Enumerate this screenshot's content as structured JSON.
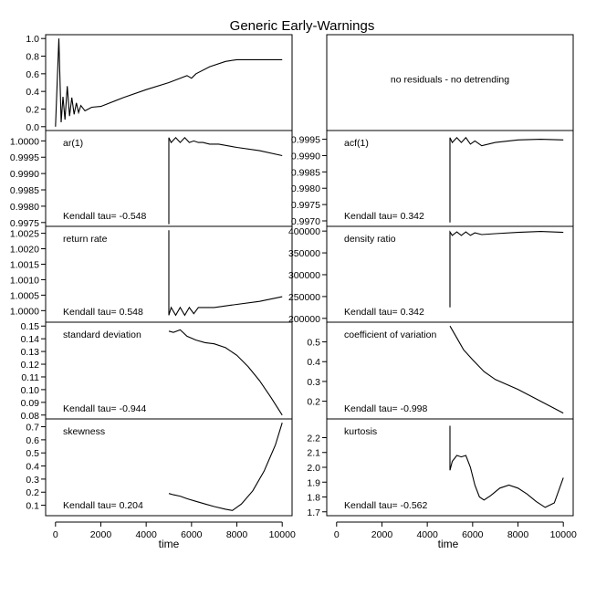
{
  "title": "Generic Early-Warnings",
  "x_title": "time",
  "x_ticks": [
    "0",
    "2000",
    "4000",
    "6000",
    "8000",
    "10000"
  ],
  "chart_data": [
    {
      "type": "line",
      "panel": "left-1",
      "label": "",
      "note": "",
      "xlim": [
        0,
        10000
      ],
      "ylim": [
        0,
        1.0
      ],
      "y_ticks": [
        "1.0",
        "0.8",
        "0.6",
        "0.4",
        "0.2",
        "0.0"
      ],
      "series": [
        {
          "x": [
            0,
            150,
            250,
            330,
            420,
            520,
            620,
            720,
            820,
            920,
            1020,
            1120,
            1300,
            1600,
            2000,
            3000,
            4000,
            5000,
            5800,
            6000,
            6200,
            6800,
            7500,
            8000,
            10000
          ],
          "y": [
            0.0,
            1.0,
            0.05,
            0.34,
            0.08,
            0.46,
            0.12,
            0.33,
            0.14,
            0.27,
            0.16,
            0.24,
            0.18,
            0.22,
            0.23,
            0.33,
            0.42,
            0.5,
            0.58,
            0.55,
            0.6,
            0.68,
            0.74,
            0.76,
            0.76
          ]
        }
      ]
    },
    {
      "type": "text",
      "panel": "right-1",
      "label": "",
      "note": "no residuals - no detrending"
    },
    {
      "type": "line",
      "panel": "left-2",
      "label": "ar(1)",
      "note": "Kendall tau= -0.548",
      "xlim": [
        0,
        10000
      ],
      "ylim": [
        0.9975,
        1.0002
      ],
      "y_ticks": [
        "1.0000",
        "0.9995",
        "0.9990",
        "0.9985",
        "0.9980",
        "0.9975"
      ],
      "series": [
        {
          "x": [
            5000,
            5000,
            5100,
            5300,
            5500,
            5700,
            5900,
            6100,
            6300,
            6500,
            6800,
            7200,
            8000,
            9000,
            10000
          ],
          "y": [
            0.99745,
            1.0001,
            0.99995,
            1.0001,
            0.99995,
            1.0001,
            0.99995,
            1.0,
            0.99995,
            0.99995,
            0.9999,
            0.9999,
            0.9998,
            0.9997,
            0.99955
          ]
        }
      ]
    },
    {
      "type": "line",
      "panel": "right-2",
      "label": "acf(1)",
      "note": "Kendall tau= 0.342",
      "xlim": [
        0,
        10000
      ],
      "ylim": [
        0.99695,
        0.99965
      ],
      "y_ticks": [
        "0.9995",
        "0.9990",
        "0.9985",
        "0.9980",
        "0.9975",
        "0.9970"
      ],
      "series": [
        {
          "x": [
            5000,
            5000,
            5100,
            5300,
            5500,
            5700,
            5900,
            6100,
            6400,
            7000,
            8000,
            9000,
            10000
          ],
          "y": [
            0.99695,
            0.99955,
            0.9994,
            0.99955,
            0.9994,
            0.99955,
            0.99935,
            0.99945,
            0.9993,
            0.9994,
            0.99948,
            0.9995,
            0.99948
          ]
        }
      ]
    },
    {
      "type": "line",
      "panel": "left-3",
      "label": "return rate",
      "note": "Kendall tau= 0.548",
      "xlim": [
        0,
        10000
      ],
      "ylim": [
        0.99975,
        1.0026
      ],
      "y_ticks": [
        "1.0025",
        "1.0020",
        "1.0015",
        "1.0010",
        "1.0005",
        "1.0000"
      ],
      "series": [
        {
          "x": [
            5000,
            5000,
            5100,
            5300,
            5500,
            5700,
            5900,
            6100,
            6300,
            6600,
            7000,
            8000,
            9000,
            10000
          ],
          "y": [
            1.0026,
            0.99985,
            1.0001,
            0.99985,
            1.0001,
            0.99985,
            1.0001,
            0.9999,
            1.0001,
            1.0001,
            1.0001,
            1.0002,
            1.0003,
            1.00045
          ]
        }
      ]
    },
    {
      "type": "line",
      "panel": "right-3",
      "label": "density ratio",
      "note": "Kendall tau= 0.342",
      "xlim": [
        0,
        10000
      ],
      "ylim": [
        200000,
        402000
      ],
      "y_ticks": [
        "400000",
        "350000",
        "300000",
        "250000",
        "200000"
      ],
      "series": [
        {
          "x": [
            5000,
            5000,
            5100,
            5300,
            5500,
            5700,
            5900,
            6100,
            6400,
            7000,
            8000,
            9000,
            10000
          ],
          "y": [
            225000,
            398000,
            390000,
            398000,
            390000,
            398000,
            390000,
            396000,
            392000,
            394000,
            397000,
            399000,
            397000
          ]
        }
      ]
    },
    {
      "type": "line",
      "panel": "left-4",
      "label": "standard deviation",
      "note": "Kendall tau= -0.944",
      "xlim": [
        0,
        10000
      ],
      "ylim": [
        0.08,
        0.15
      ],
      "y_ticks": [
        "0.15",
        "0.14",
        "0.13",
        "0.12",
        "0.11",
        "0.10",
        "0.09",
        "0.08"
      ],
      "series": [
        {
          "x": [
            5000,
            5200,
            5500,
            5800,
            6200,
            6600,
            7000,
            7500,
            8000,
            8500,
            9000,
            9500,
            10000
          ],
          "y": [
            0.146,
            0.145,
            0.147,
            0.142,
            0.139,
            0.137,
            0.136,
            0.133,
            0.127,
            0.118,
            0.107,
            0.094,
            0.08
          ]
        }
      ]
    },
    {
      "type": "line",
      "panel": "right-4",
      "label": "coefficient of variation",
      "note": "Kendall tau= -0.998",
      "xlim": [
        0,
        10000
      ],
      "ylim": [
        0.13,
        0.58
      ],
      "y_ticks": [
        "0.5",
        "0.4",
        "0.3",
        "0.2"
      ],
      "series": [
        {
          "x": [
            5000,
            5300,
            5600,
            6000,
            6500,
            7000,
            8000,
            9000,
            10000
          ],
          "y": [
            0.58,
            0.52,
            0.46,
            0.41,
            0.35,
            0.31,
            0.26,
            0.2,
            0.14
          ]
        }
      ]
    },
    {
      "type": "line",
      "panel": "left-5",
      "label": "skewness",
      "note": "Kendall tau= 0.204",
      "xlim": [
        0,
        10000
      ],
      "ylim": [
        0.05,
        0.73
      ],
      "y_ticks": [
        "0.7",
        "0.6",
        "0.5",
        "0.4",
        "0.3",
        "0.2",
        "0.1"
      ],
      "series": [
        {
          "x": [
            5000,
            5200,
            5500,
            5800,
            6200,
            6600,
            7000,
            7500,
            7800,
            8200,
            8700,
            9200,
            9700,
            10000
          ],
          "y": [
            0.19,
            0.18,
            0.17,
            0.15,
            0.13,
            0.11,
            0.09,
            0.07,
            0.06,
            0.11,
            0.21,
            0.36,
            0.56,
            0.73
          ]
        }
      ]
    },
    {
      "type": "line",
      "panel": "right-5",
      "label": "kurtosis",
      "note": "Kendall tau= -0.562",
      "xlim": [
        0,
        10000
      ],
      "ylim": [
        1.7,
        2.3
      ],
      "y_ticks": [
        "2.2",
        "2.1",
        "2.0",
        "1.9",
        "1.8",
        "1.7"
      ],
      "series": [
        {
          "x": [
            5000,
            5000,
            5100,
            5300,
            5500,
            5700,
            5900,
            6100,
            6300,
            6500,
            6800,
            7200,
            7600,
            8000,
            8400,
            8800,
            9200,
            9600,
            10000
          ],
          "y": [
            2.28,
            1.98,
            2.04,
            2.08,
            2.07,
            2.08,
            2.0,
            1.88,
            1.8,
            1.78,
            1.81,
            1.86,
            1.88,
            1.86,
            1.82,
            1.77,
            1.73,
            1.76,
            1.93
          ]
        }
      ]
    }
  ]
}
